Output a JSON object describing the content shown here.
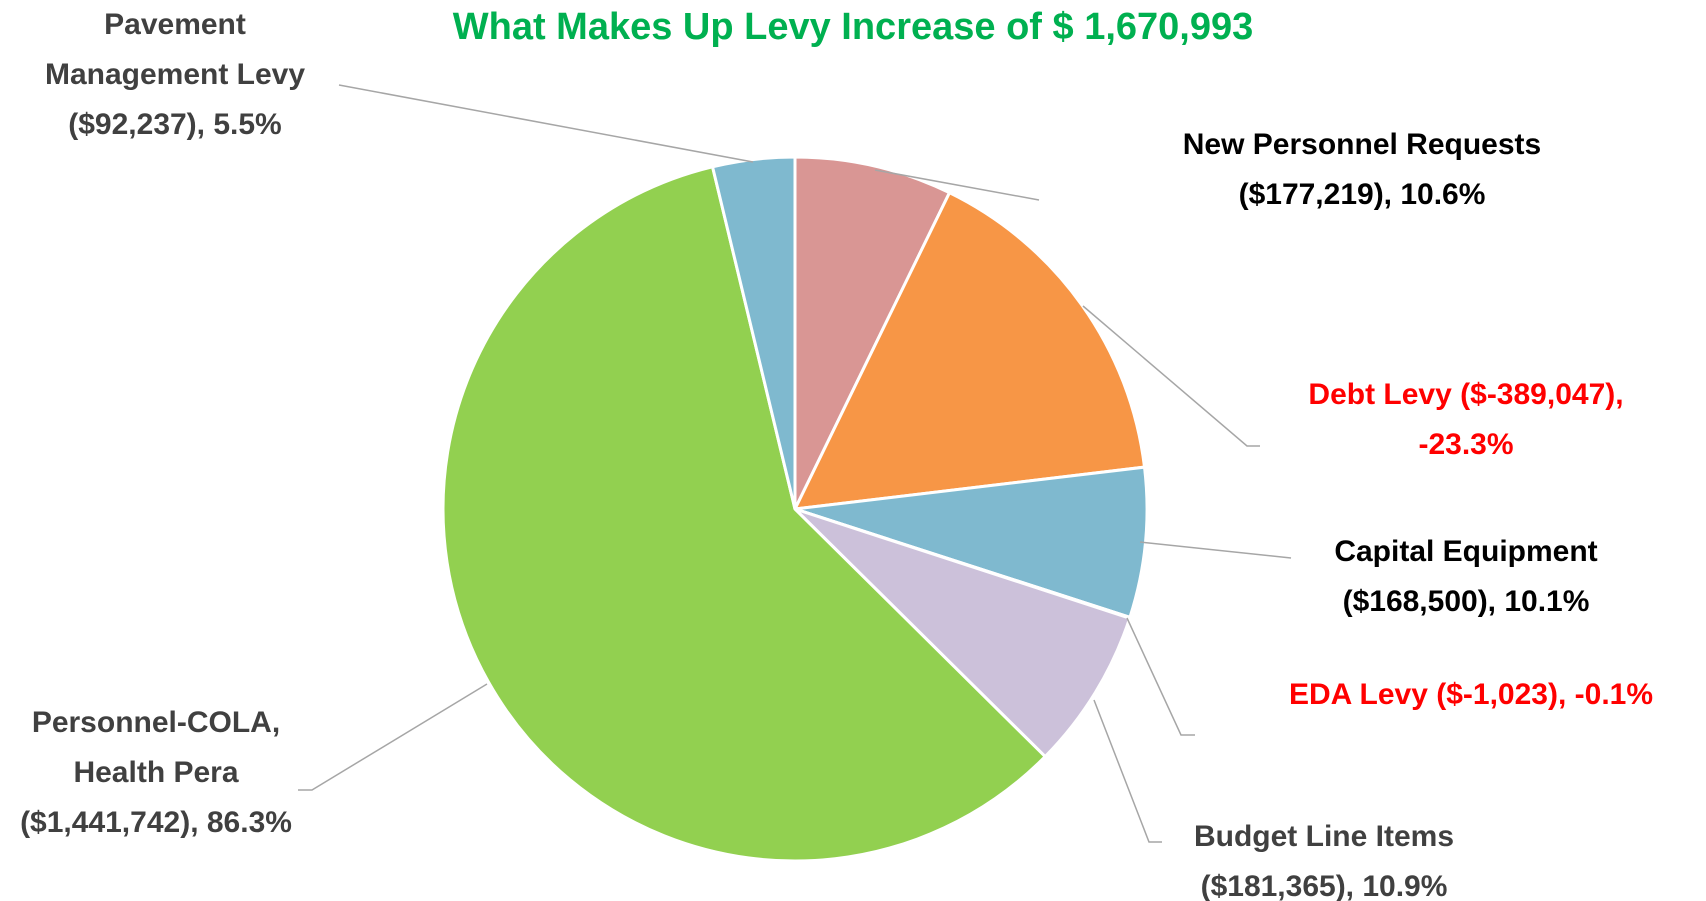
{
  "chart_data": {
    "type": "pie",
    "title": "What Makes Up Levy Increase of $ 1,670,993",
    "categories": [
      "New Personnel Requests",
      "Debt Levy",
      "Capital Equipment",
      "EDA Levy",
      "Budget Line Items",
      "Personnel-COLA, Health Pera",
      "Pavement Management Levy"
    ],
    "values": [
      177219,
      -389047,
      168500,
      -1023,
      181365,
      1441742,
      92237
    ],
    "value_labels": [
      "($177,219), 10.6%",
      "($-389,047), -23.3%",
      "($168,500), 10.1%",
      "($-1,023), -0.1%",
      "($181,365), 10.9%",
      "($1,441,742), 86.3%",
      "($92,237), 5.5%"
    ],
    "colors": [
      "#d99694",
      "#f79646",
      "#7fb9cf",
      "#b0b0b0",
      "#ccc1da",
      "#92d050",
      "#7fb9cf"
    ],
    "label_colors": [
      "#000000",
      "#ff0000",
      "#000000",
      "#ff0000",
      "#404040",
      "#404040",
      "#404040"
    ]
  }
}
